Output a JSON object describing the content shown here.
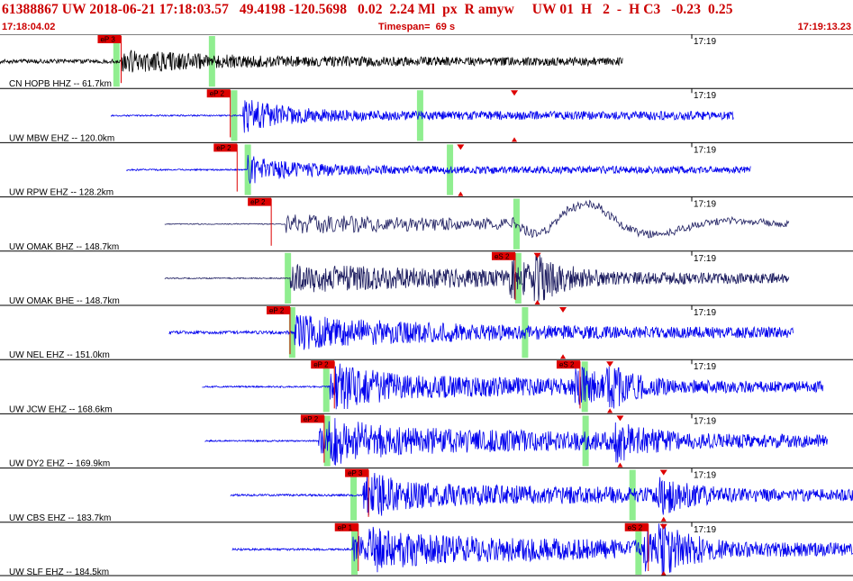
{
  "header": {
    "title": "61388867 UW 2018-06-21 17:18:03.57   49.4198 -120.5698   0.02  2.24 Ml  px  R amyw     UW 01  H   2  -  H C3   -0.23  0.25",
    "start_time": "17:18:04.02",
    "timespan": "Timespan=  69 s",
    "end_time": "17:19:13.23"
  },
  "colors": {
    "background": "#ffffff",
    "header_text": "#cc0000",
    "trace_black": "#000000",
    "trace_blue": "#0000ee",
    "trace_navy": "#1a1a5e",
    "pick": "#dd0000",
    "pick_window": "#90ee90",
    "separator": "#000000"
  },
  "traces": [
    {
      "label": "CN HOPB HHZ -- 61.7km",
      "tick": "17:19",
      "color": "black",
      "picks": [
        {
          "label": "eP 3",
          "t": 0.142
        }
      ],
      "windows": [
        0.136,
        0.248
      ],
      "markers": [],
      "signal": {
        "start": 0.0,
        "end": 0.73,
        "onset": 0.142,
        "amp": 0.32,
        "decay": 0.12,
        "noise": 0.08,
        "style": "broadband"
      }
    },
    {
      "label": "UW MBW EHZ -- 120.0km",
      "tick": "17:19",
      "color": "blue",
      "picks": [
        {
          "label": "eP 2",
          "t": 0.27
        }
      ],
      "windows": [
        0.274,
        0.492
      ],
      "markers": [
        0.603
      ],
      "signal": {
        "start": 0.13,
        "end": 0.86,
        "onset": 0.285,
        "amp": 0.55,
        "decay": 0.05,
        "noise": 0.03,
        "style": "hf"
      }
    },
    {
      "label": "UW RPW EHZ -- 128.2km",
      "tick": "17:19",
      "color": "blue",
      "picks": [
        {
          "label": "eP 2",
          "t": 0.278
        }
      ],
      "windows": [
        0.29,
        0.527
      ],
      "markers": [
        0.54
      ],
      "signal": {
        "start": 0.148,
        "end": 0.88,
        "onset": 0.29,
        "amp": 0.45,
        "decay": 0.06,
        "noise": 0.03,
        "style": "hf"
      }
    },
    {
      "label": "UW OMAK BHZ -- 148.7km",
      "tick": "17:19",
      "color": "navy",
      "picks": [
        {
          "label": "eP 2",
          "t": 0.318
        }
      ],
      "windows": [
        0.605
      ],
      "markers": [],
      "signal": {
        "start": 0.193,
        "end": 0.925,
        "onset": 0.335,
        "amp": 0.32,
        "decay": 0.25,
        "noise": 0.02,
        "style": "surface"
      }
    },
    {
      "label": "UW OMAK BHE -- 148.7km",
      "tick": "17:19",
      "color": "navy",
      "picks": [
        {
          "label": "eS 2",
          "t": 0.604
        }
      ],
      "windows": [
        0.337,
        0.607
      ],
      "markers": [
        0.63
      ],
      "signal": {
        "start": 0.193,
        "end": 0.925,
        "onset": 0.34,
        "amp": 0.45,
        "decay": 0.3,
        "noise": 0.02,
        "style": "swave"
      }
    },
    {
      "label": "UW NEL EHZ -- 151.0km",
      "tick": "17:19",
      "color": "blue",
      "picks": [
        {
          "label": "eP 2",
          "t": 0.34
        }
      ],
      "windows": [
        0.342,
        0.615
      ],
      "markers": [
        0.66
      ],
      "signal": {
        "start": 0.198,
        "end": 0.93,
        "onset": 0.345,
        "amp": 0.55,
        "decay": 0.15,
        "noise": 0.06,
        "style": "hf"
      }
    },
    {
      "label": "UW JCW EHZ -- 168.6km",
      "tick": "17:19",
      "color": "blue",
      "picks": [
        {
          "label": "eP 2",
          "t": 0.392
        },
        {
          "label": "eS 2",
          "t": 0.68
        }
      ],
      "windows": [
        0.382,
        0.685
      ],
      "markers": [
        0.715
      ],
      "signal": {
        "start": 0.237,
        "end": 0.965,
        "onset": 0.39,
        "amp": 0.45,
        "decay": 0.3,
        "noise": 0.03,
        "style": "swave"
      }
    },
    {
      "label": "UW DY2 EHZ -- 169.9km",
      "tick": "17:19",
      "color": "blue",
      "picks": [
        {
          "label": "eP 2",
          "t": 0.38
        }
      ],
      "windows": [
        0.383,
        0.686
      ],
      "markers": [
        0.727
      ],
      "signal": {
        "start": 0.24,
        "end": 0.97,
        "onset": 0.385,
        "amp": 0.5,
        "decay": 0.35,
        "noise": 0.03,
        "style": "swave"
      }
    },
    {
      "label": "UW CBS EHZ -- 183.7km",
      "tick": "17:19",
      "color": "blue",
      "picks": [
        {
          "label": "eP 3",
          "t": 0.432
        }
      ],
      "windows": [
        0.414,
        0.741
      ],
      "markers": [
        0.778
      ],
      "signal": {
        "start": 0.27,
        "end": 1.0,
        "onset": 0.43,
        "amp": 0.38,
        "decay": 0.4,
        "noise": 0.04,
        "style": "swave"
      }
    },
    {
      "label": "UW SLF EHZ -- 184.5km",
      "tick": "17:19",
      "color": "blue",
      "picks": [
        {
          "label": "eP 1",
          "t": 0.42
        },
        {
          "label": "eS 2",
          "t": 0.76
        }
      ],
      "windows": [
        0.415,
        0.748
      ],
      "markers": [
        0.778
      ],
      "signal": {
        "start": 0.272,
        "end": 1.0,
        "onset": 0.43,
        "amp": 0.5,
        "decay": 0.35,
        "noise": 0.04,
        "style": "swave"
      }
    }
  ]
}
